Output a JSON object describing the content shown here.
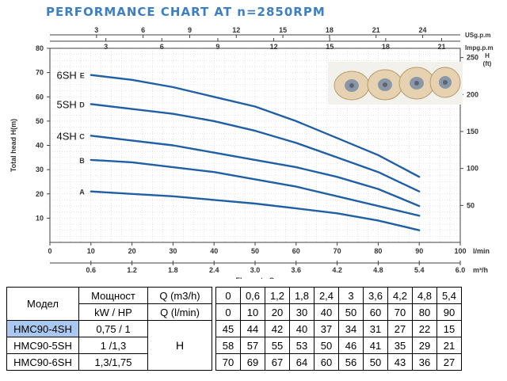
{
  "chart_data": {
    "type": "line",
    "title": "PERFORMANCE CHART AT n=2850RPM",
    "xlabel": "Flow rate Q",
    "ylabel": "Total head H(m)",
    "x_unit_label": "l/min",
    "x_range": [
      0,
      100
    ],
    "y_range": [
      0,
      80
    ],
    "x_ticks": [
      0,
      10,
      20,
      30,
      40,
      50,
      60,
      70,
      80,
      90,
      100
    ],
    "y_ticks": [
      10,
      20,
      30,
      40,
      50,
      60,
      70,
      80
    ],
    "x2_unit_label": "m³/h",
    "x2_ticks": [
      "0.6",
      "1.2",
      "1.8",
      "2.4",
      "3.0",
      "3.6",
      "4.2",
      "4.8",
      "5.4",
      "6.0"
    ],
    "top_axis_1": {
      "label": "USg.p.m",
      "ticks": [
        "3",
        "6",
        "9",
        "12",
        "15",
        "18",
        "21",
        "24"
      ]
    },
    "top_axis_2": {
      "label": "Impg.p.m",
      "ticks": [
        "3",
        "6",
        "9",
        "12",
        "15",
        "18",
        "21"
      ]
    },
    "right_axis": {
      "label": "H (ft)",
      "range": [
        0,
        262.5
      ],
      "ticks": [
        "50",
        "100",
        "150",
        "200",
        "250"
      ]
    },
    "series": [
      {
        "name": "E",
        "model_label": "6SH",
        "x": [
          10,
          20,
          30,
          40,
          50,
          60,
          70,
          80,
          90
        ],
        "y": [
          69,
          67,
          64,
          60,
          56,
          50,
          43,
          36,
          27
        ]
      },
      {
        "name": "D",
        "model_label": "5SH",
        "x": [
          10,
          20,
          30,
          40,
          50,
          60,
          70,
          80,
          90
        ],
        "y": [
          57,
          55,
          53,
          50,
          46,
          41,
          35,
          29,
          21
        ]
      },
      {
        "name": "C",
        "model_label": "4SH",
        "x": [
          10,
          20,
          30,
          40,
          50,
          60,
          70,
          80,
          90
        ],
        "y": [
          44,
          42,
          40,
          37,
          34,
          31,
          27,
          22,
          15
        ]
      },
      {
        "name": "B",
        "x": [
          10,
          20,
          30,
          40,
          50,
          60,
          70,
          80,
          90
        ],
        "y": [
          34,
          33,
          31,
          29,
          26,
          23,
          19,
          15,
          11
        ]
      },
      {
        "name": "A",
        "x": [
          10,
          20,
          30,
          40,
          50,
          60,
          70,
          80,
          90
        ],
        "y": [
          21,
          20,
          19,
          17.5,
          16,
          14,
          12,
          9,
          5
        ]
      }
    ],
    "grid": true,
    "curve_color": "#1f5fa5",
    "axis_color": "#404040"
  },
  "table": {
    "h_model": "Модел",
    "h_power1": "Мощност",
    "h_power2": "kW / HP",
    "h_q_m3": "Q (m3/h)",
    "h_q_l": "Q (l/min)",
    "q_m3": [
      "0",
      "0,6",
      "1,2",
      "1,8",
      "2,4",
      "3",
      "3,6",
      "4,2",
      "4,8",
      "5,4"
    ],
    "q_l": [
      "0",
      "10",
      "20",
      "30",
      "40",
      "50",
      "60",
      "70",
      "80",
      "90"
    ],
    "h_label": "H",
    "rows": [
      {
        "model": "HMC90-4SH",
        "power": "0,75 / 1",
        "h": [
          "45",
          "44",
          "42",
          "40",
          "37",
          "34",
          "31",
          "27",
          "22",
          "15"
        ]
      },
      {
        "model": "HMC90-5SH",
        "power": "1 /1,3",
        "h": [
          "58",
          "57",
          "55",
          "53",
          "50",
          "46",
          "41",
          "35",
          "29",
          "21"
        ]
      },
      {
        "model": "HMC90-6SH",
        "power": "1,3/1,75",
        "h": [
          "70",
          "69",
          "67",
          "64",
          "60",
          "56",
          "50",
          "43",
          "36",
          "27"
        ]
      }
    ],
    "highlight_color": "#a9c8ef"
  }
}
